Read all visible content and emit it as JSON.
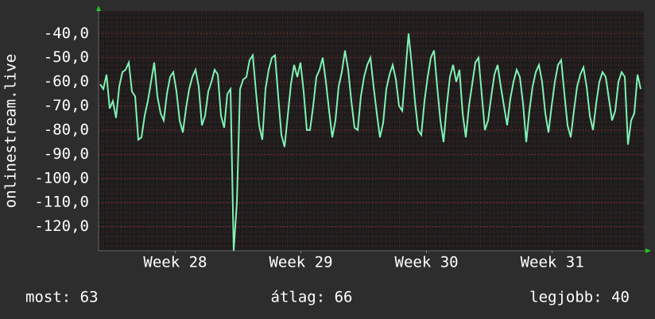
{
  "chart_data": {
    "type": "line",
    "y_label": "onlinestream.live",
    "ylim": [
      -130,
      -30.7
    ],
    "yticks": [
      {
        "value": -40,
        "label": "-40,0"
      },
      {
        "value": -50,
        "label": "-50,0"
      },
      {
        "value": -60,
        "label": "-60,0"
      },
      {
        "value": -70,
        "label": "-70,0"
      },
      {
        "value": -80,
        "label": "-80,0"
      },
      {
        "value": -90,
        "label": "-90,0"
      },
      {
        "value": -100,
        "label": "-100,0"
      },
      {
        "value": -110,
        "label": "-110,0"
      },
      {
        "value": -120,
        "label": "-120,0"
      }
    ],
    "xlim": [
      27.89,
      32.23
    ],
    "xticks": [
      {
        "value": 28.5,
        "label": "Week 28"
      },
      {
        "value": 29.5,
        "label": "Week 29"
      },
      {
        "value": 30.5,
        "label": "Week 30"
      },
      {
        "value": 31.5,
        "label": "Week 31"
      }
    ],
    "grid": true,
    "color": "#7ff2b4",
    "values": [
      -61,
      -63,
      -57,
      -71,
      -68,
      -75,
      -62,
      -56,
      -55,
      -52,
      -64,
      -66,
      -84,
      -83,
      -74,
      -68,
      -60,
      -52,
      -66,
      -73,
      -76,
      -65,
      -58,
      -56,
      -64,
      -76,
      -81,
      -71,
      -63,
      -58,
      -55,
      -62,
      -78,
      -74,
      -64,
      -60,
      -55,
      -57,
      -74,
      -79,
      -65,
      -63,
      -130,
      -110,
      -63,
      -59,
      -58,
      -51,
      -49,
      -64,
      -78,
      -84,
      -63,
      -55,
      -50,
      -49,
      -66,
      -82,
      -87,
      -74,
      -61,
      -53,
      -58,
      -52,
      -64,
      -80,
      -80,
      -70,
      -58,
      -55,
      -50,
      -60,
      -72,
      -83,
      -76,
      -62,
      -56,
      -47,
      -55,
      -68,
      -79,
      -80,
      -66,
      -58,
      -53,
      -50,
      -62,
      -73,
      -83,
      -77,
      -63,
      -57,
      -53,
      -59,
      -70,
      -72,
      -56,
      -40,
      -53,
      -68,
      -80,
      -82,
      -68,
      -58,
      -50,
      -47,
      -62,
      -76,
      -85,
      -70,
      -58,
      -53,
      -60,
      -55,
      -73,
      -83,
      -70,
      -61,
      -52,
      -50,
      -65,
      -80,
      -76,
      -66,
      -57,
      -53,
      -62,
      -70,
      -78,
      -67,
      -60,
      -55,
      -58,
      -69,
      -85,
      -72,
      -62,
      -56,
      -53,
      -60,
      -73,
      -81,
      -70,
      -60,
      -53,
      -51,
      -65,
      -78,
      -83,
      -72,
      -62,
      -57,
      -54,
      -62,
      -74,
      -80,
      -69,
      -60,
      -56,
      -58,
      -67,
      -76,
      -72,
      -60,
      -56,
      -58,
      -86,
      -76,
      -73,
      -57,
      -63
    ],
    "legend": [
      "most: 63",
      "átlag: 66",
      "legjobb: 40"
    ]
  }
}
